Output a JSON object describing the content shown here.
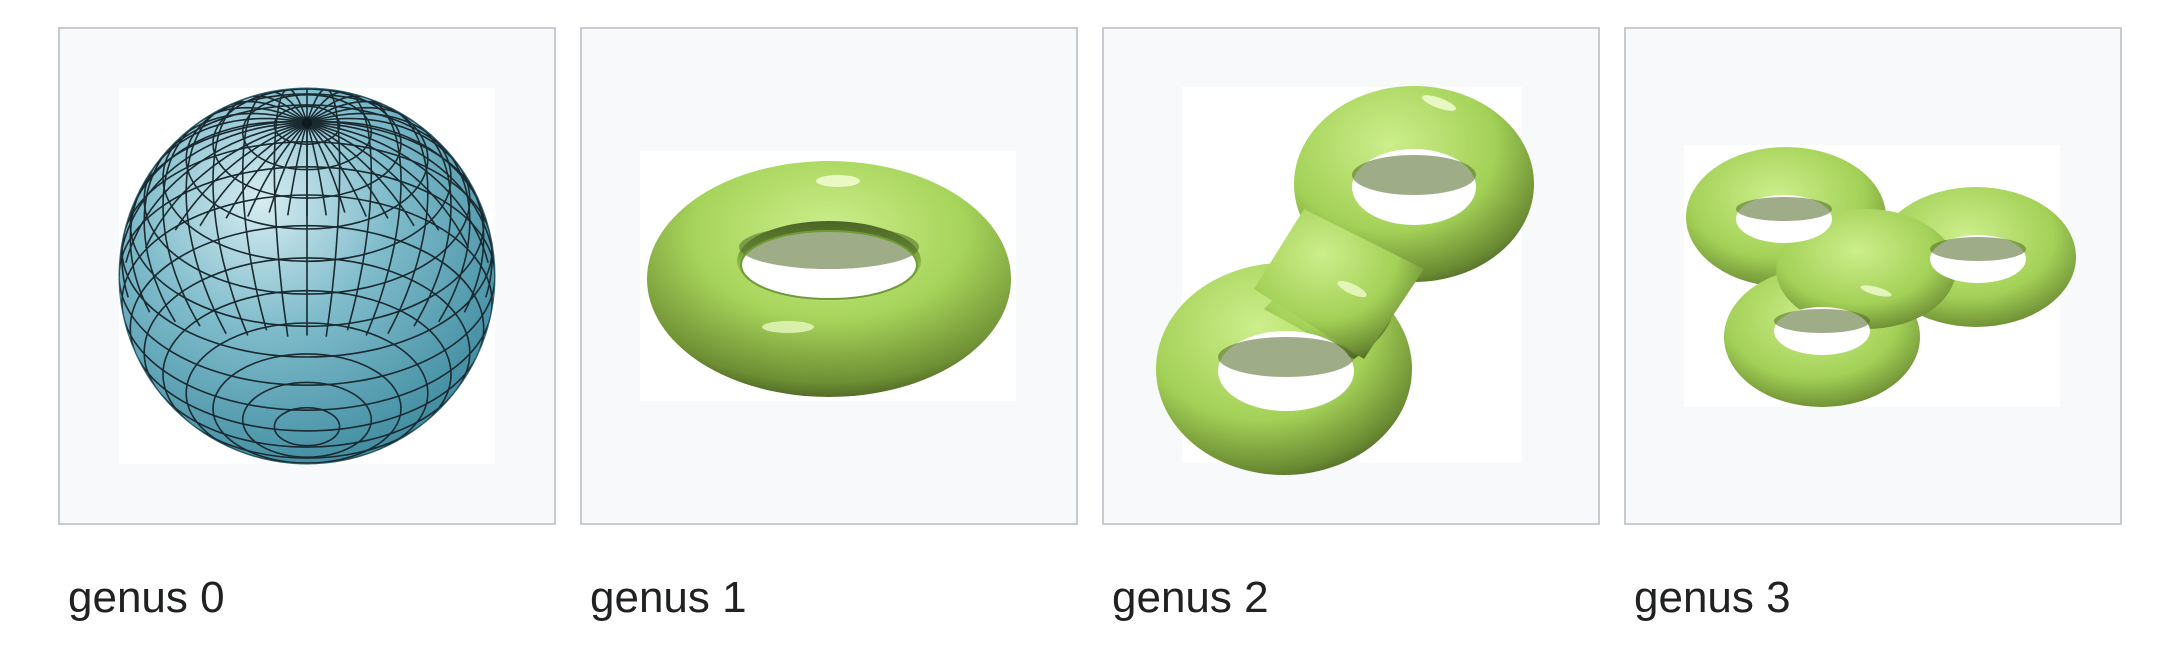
{
  "gallery": {
    "items": [
      {
        "caption": "genus 0",
        "shape": "sphere-icon"
      },
      {
        "caption": "genus 1",
        "shape": "torus-icon"
      },
      {
        "caption": "genus 2",
        "shape": "double-torus-icon"
      },
      {
        "caption": "genus 3",
        "shape": "triple-torus-icon"
      }
    ]
  },
  "colors": {
    "border": "#c8ccd1",
    "box_background": "#f8f9fa",
    "sphere": "#5fa2b5",
    "torus": "#a9d65c",
    "caption_text": "#202122"
  }
}
